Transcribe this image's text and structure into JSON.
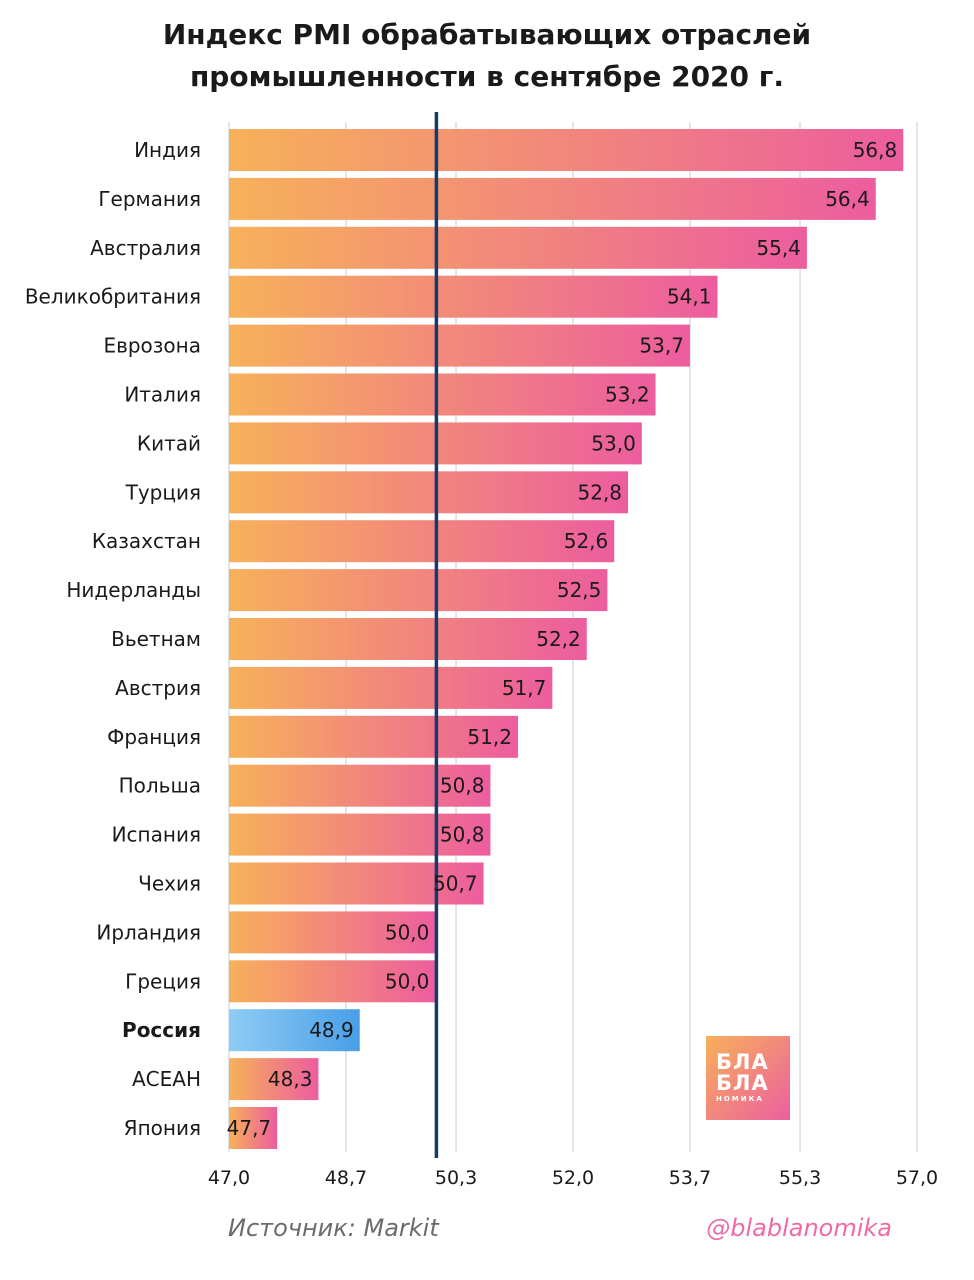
{
  "title_line1": "Индекс PMI обрабатывающих отраслей",
  "title_line2": "промышленности в сентябре 2020 г.",
  "source": "Источник: Markit",
  "handle": "@blablanomika",
  "logo": {
    "line1": "БЛА",
    "line2": "БЛА",
    "line3": "НОМИКА"
  },
  "colors": {
    "bar_start": "#f7b15a",
    "bar_end": "#ec5d9e",
    "highlight_start": "#8ecdf4",
    "highlight_end": "#4a9ee8",
    "reference_line": "#163a6b",
    "grid": "#d7dde8"
  },
  "chart_data": {
    "type": "bar",
    "orientation": "horizontal",
    "categories": [
      "Индия",
      "Германия",
      "Австралия",
      "Великобритания",
      "Еврозона",
      "Италия",
      "Китай",
      "Турция",
      "Казахстан",
      "Нидерланды",
      "Вьетнам",
      "Австрия",
      "Франция",
      "Польша",
      "Испания",
      "Чехия",
      "Ирландия",
      "Греция",
      "Россия",
      "АСЕАН",
      "Япония"
    ],
    "values": [
      56.8,
      56.4,
      55.4,
      54.1,
      53.7,
      53.2,
      53.0,
      52.8,
      52.6,
      52.5,
      52.2,
      51.7,
      51.2,
      50.8,
      50.8,
      50.7,
      50.0,
      50.0,
      48.9,
      48.3,
      47.7
    ],
    "value_labels": [
      "56,8",
      "56,4",
      "55,4",
      "54,1",
      "53,7",
      "53,2",
      "53,0",
      "52,8",
      "52,6",
      "52,5",
      "52,2",
      "51,7",
      "51,2",
      "50,8",
      "50,8",
      "50,7",
      "50,0",
      "50,0",
      "48,9",
      "48,3",
      "47,7"
    ],
    "highlight": "Россия",
    "reference_value": 50.0,
    "xlim": [
      47.0,
      57.0
    ],
    "x_ticks": [
      47.0,
      48.7,
      50.3,
      52.0,
      53.7,
      55.3,
      57.0
    ],
    "x_tick_labels": [
      "47,0",
      "48,7",
      "50,3",
      "52,0",
      "53,7",
      "55,3",
      "57,0"
    ],
    "grid": true
  }
}
